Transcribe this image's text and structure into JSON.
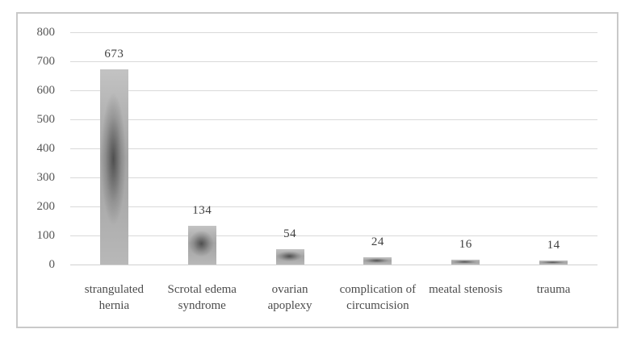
{
  "chart_data": {
    "type": "bar",
    "title": "",
    "xlabel": "",
    "ylabel": "",
    "categories": [
      "strangulated hernia",
      "Scrotal edema syndrome",
      "ovarian apoplexy",
      "complication of circumcision",
      "meatal stenosis",
      "trauma"
    ],
    "category_lines": [
      [
        "strangulated",
        "hernia"
      ],
      [
        "Scrotal edema",
        "syndrome"
      ],
      [
        "ovarian",
        "apoplexy"
      ],
      [
        "complication of",
        "circumcision"
      ],
      [
        "meatal stenosis"
      ],
      [
        "trauma"
      ]
    ],
    "values": [
      673,
      134,
      54,
      24,
      16,
      14
    ],
    "value_labels": [
      "673",
      "134",
      "54",
      "24",
      "16",
      "14"
    ],
    "ylim": [
      0,
      800
    ],
    "ytick_step": 100,
    "yticks": [
      0,
      100,
      200,
      300,
      400,
      500,
      600,
      700,
      800
    ],
    "grid": true,
    "legend": false,
    "colors": {
      "frame_border": "#c9c9c9",
      "gridline": "#d9d9d9",
      "axis_baseline": "#d0d0d0",
      "bar_core": "#3a3a3a",
      "bar_mid": "#a4a4a4",
      "bar_edge": "#c3c3c3",
      "tick_text": "#565656",
      "label_text": "#4c4c4c",
      "value_text": "#3f3f3f",
      "background": "#ffffff"
    }
  }
}
